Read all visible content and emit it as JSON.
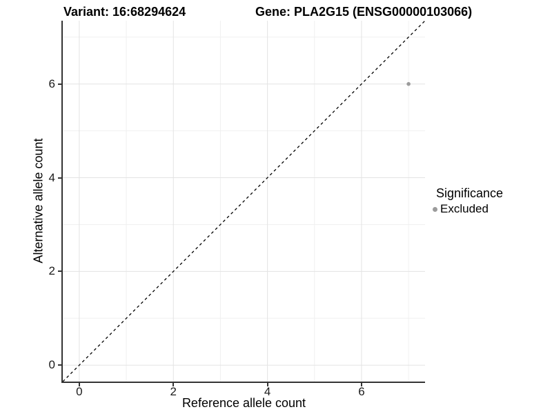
{
  "header": {
    "variant_title": "Variant: 16:68294624",
    "gene_title": "Gene: PLA2G15 (ENSG00000103066)"
  },
  "chart_data": {
    "type": "scatter",
    "title": "Variant: 16:68294624    Gene: PLA2G15 (ENSG00000103066)",
    "xlabel": "Reference allele count",
    "ylabel": "Alternative allele count",
    "xlim": [
      -0.35,
      7.35
    ],
    "ylim": [
      -0.35,
      7.35
    ],
    "x_ticks": [
      0,
      2,
      4,
      6
    ],
    "y_ticks": [
      0,
      2,
      4,
      6
    ],
    "x_minor_ticks": [
      1,
      3,
      5,
      7
    ],
    "y_minor_ticks": [
      1,
      3,
      5,
      7
    ],
    "grid": "on",
    "identity_line": {
      "style": "dashed",
      "color": "#000000",
      "from": [
        -0.35,
        -0.35
      ],
      "to": [
        7.35,
        7.35
      ]
    },
    "series": [
      {
        "name": "Excluded",
        "color": "#9b9b9b",
        "points": [
          {
            "x": 7,
            "y": 6
          }
        ]
      }
    ],
    "legend": {
      "title": "Significance",
      "position": "right",
      "entries": [
        {
          "label": "Excluded",
          "color": "#9b9b9b"
        }
      ]
    },
    "colors": {
      "background": "#ffffff",
      "grid_major": "#e3e3e3",
      "grid_minor": "#f0f0f0",
      "axis_line": "#333333",
      "tick_mark": "#333333",
      "text": "#000000"
    }
  }
}
